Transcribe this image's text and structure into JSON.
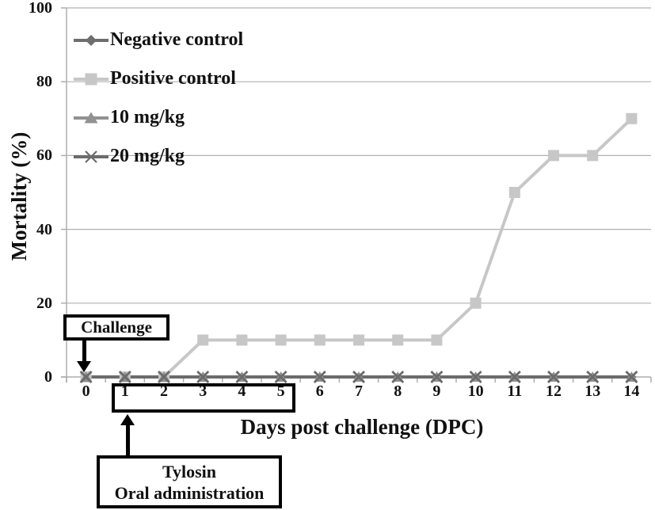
{
  "colors": {
    "background": "#ffffff",
    "grid": "#b0b0b0",
    "axis": "#adadad",
    "annotation_border": "#000000",
    "text": "#111111"
  },
  "chart_data": {
    "type": "line",
    "title": "",
    "xlabel": "Days post challenge (DPC)",
    "ylabel": "Mortality (%)",
    "categories": [
      0,
      1,
      2,
      3,
      4,
      5,
      6,
      7,
      8,
      9,
      10,
      11,
      12,
      13,
      14
    ],
    "y_ticks": [
      0,
      20,
      40,
      60,
      80,
      100
    ],
    "ylim": [
      0,
      100
    ],
    "grid": "horizontal-only",
    "legend_position": "inside-top-left",
    "series": [
      {
        "name": "Negative control",
        "marker": "diamond",
        "color": "#6e6e6e",
        "values": [
          0,
          0,
          0,
          0,
          0,
          0,
          0,
          0,
          0,
          0,
          0,
          0,
          0,
          0,
          0
        ]
      },
      {
        "name": "Positive control",
        "marker": "square",
        "color": "#c7c7c7",
        "values": [
          0,
          0,
          0,
          10,
          10,
          10,
          10,
          10,
          10,
          10,
          20,
          50,
          60,
          60,
          70
        ]
      },
      {
        "name": "10 mg/kg",
        "marker": "triangle",
        "color": "#919191",
        "values": [
          0,
          0,
          0,
          0,
          0,
          0,
          0,
          0,
          0,
          0,
          0,
          0,
          0,
          0,
          0
        ]
      },
      {
        "name": "20 mg/kg",
        "marker": "x",
        "color": "#6b6b6b",
        "values": [
          0,
          0,
          0,
          0,
          0,
          0,
          0,
          0,
          0,
          0,
          0,
          0,
          0,
          0,
          0
        ]
      }
    ],
    "annotations": {
      "challenge": {
        "text": "Challenge",
        "points_to_day": 0
      },
      "treatment_range_box": {
        "days": "1-5"
      },
      "tylosin": {
        "line1": "Tylosin",
        "line2": "Oral administration",
        "points_to_day": 1
      }
    }
  }
}
